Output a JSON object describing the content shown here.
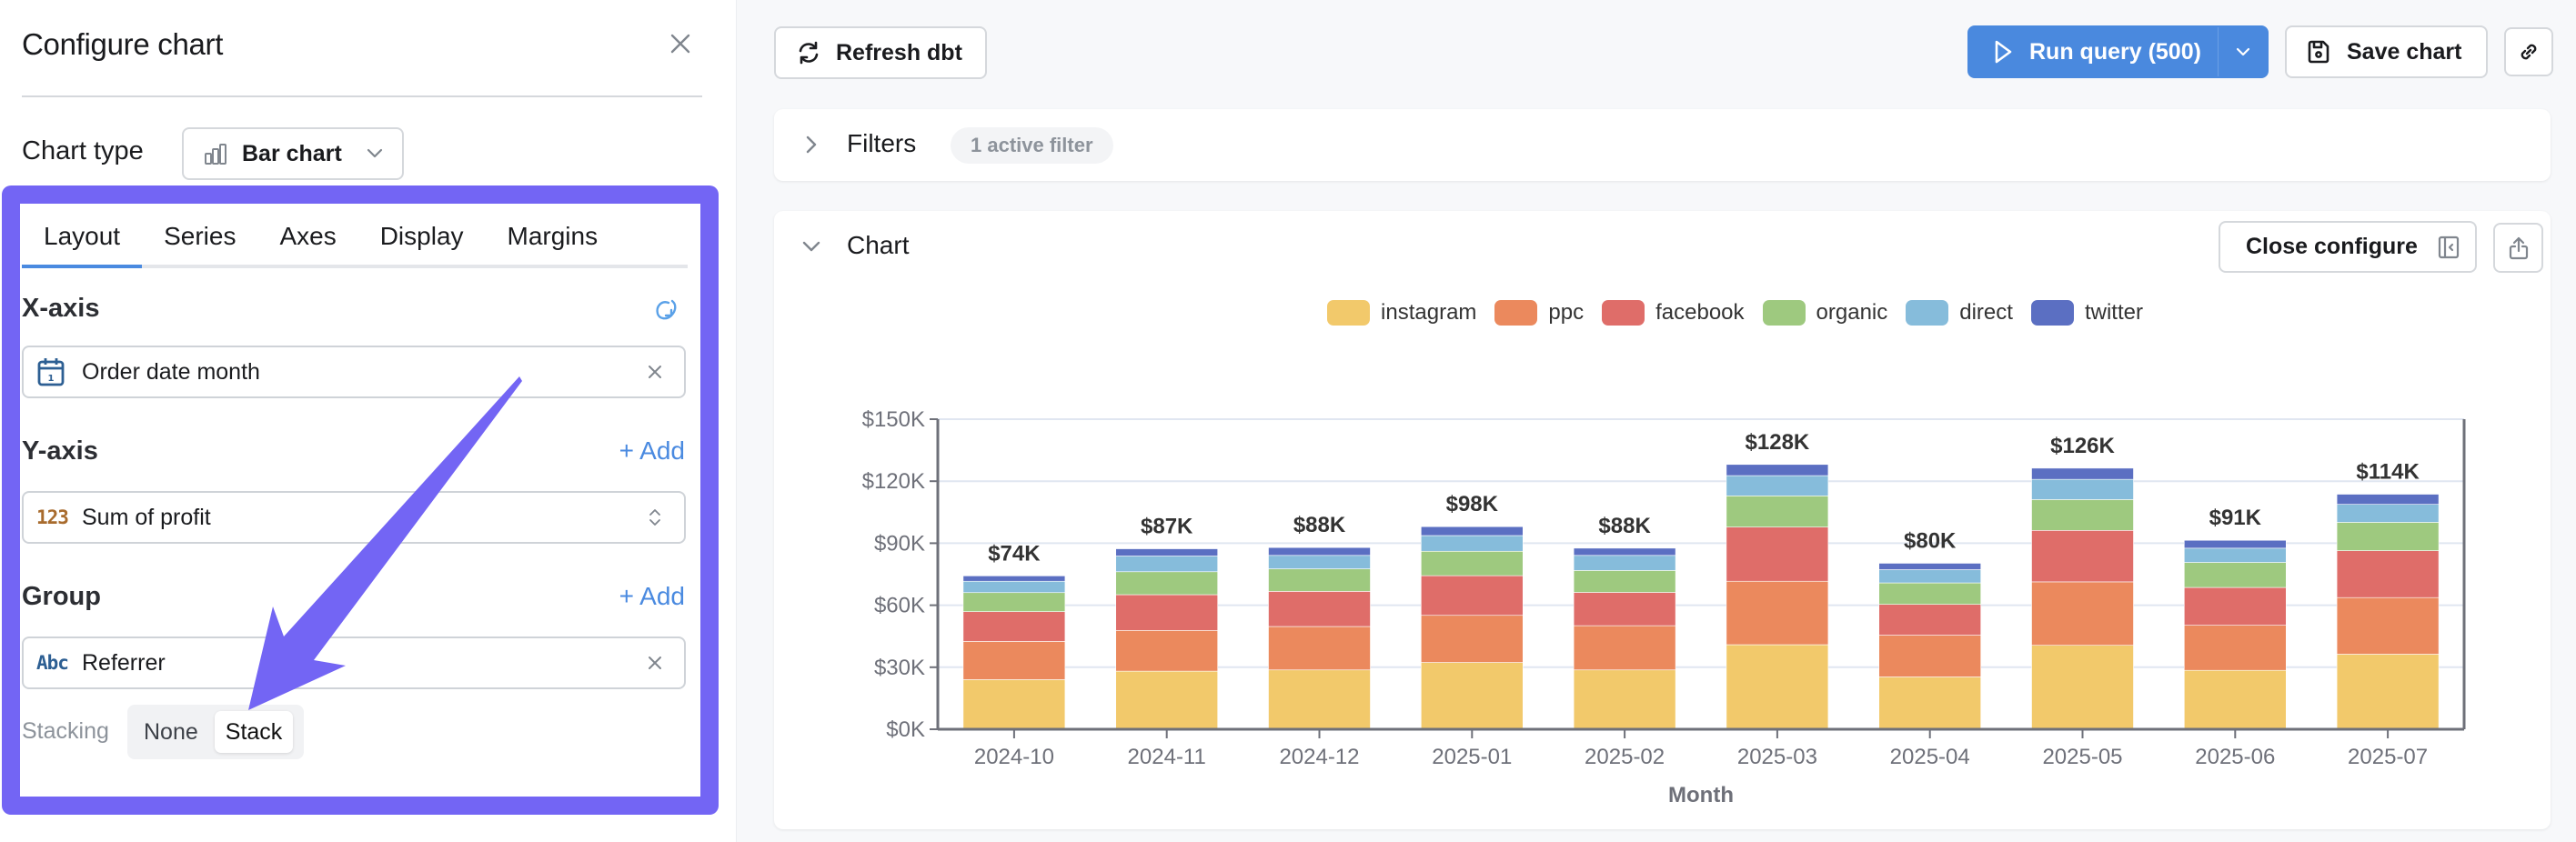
{
  "left_panel": {
    "title": "Configure chart",
    "close_icon": "close-icon",
    "chart_type_label": "Chart type",
    "chart_type_value": "Bar chart",
    "tabs": [
      {
        "label": "Layout",
        "active": true
      },
      {
        "label": "Series",
        "active": false
      },
      {
        "label": "Axes",
        "active": false
      },
      {
        "label": "Display",
        "active": false
      },
      {
        "label": "Margins",
        "active": false
      }
    ],
    "x_axis": {
      "label": "X-axis",
      "action_icon": "flip-axes-icon",
      "field": "Order date month",
      "field_type_icon": "calendar-icon"
    },
    "y_axis": {
      "label": "Y-axis",
      "action": "+ Add",
      "field": "Sum of profit",
      "field_type_glyph": "123"
    },
    "group": {
      "label": "Group",
      "action": "+ Add",
      "field": "Referrer",
      "field_type_glyph": "Abc"
    },
    "stacking": {
      "label": "Stacking",
      "options": [
        "None",
        "Stack"
      ],
      "selected": "Stack"
    }
  },
  "toolbar": {
    "refresh_label": "Refresh dbt",
    "run_label": "Run query (500)",
    "save_label": "Save chart"
  },
  "filters": {
    "title": "Filters",
    "badge": "1 active filter"
  },
  "chart_section": {
    "title": "Chart",
    "close_configure_label": "Close configure"
  },
  "colors": {
    "accent": "#4a89de",
    "highlight": "#7365f4"
  },
  "chart_data": {
    "type": "bar",
    "stacked": true,
    "title": "",
    "xlabel": "Month",
    "ylabel": "",
    "ylim": [
      0,
      150000
    ],
    "yticks": [
      0,
      30000,
      60000,
      90000,
      120000,
      150000
    ],
    "ytick_labels": [
      "$0K",
      "$30K",
      "$60K",
      "$90K",
      "$120K",
      "$150K"
    ],
    "grid": true,
    "legend_position": "top-center",
    "categories": [
      "2024-10",
      "2024-11",
      "2024-12",
      "2025-01",
      "2025-02",
      "2025-03",
      "2025-04",
      "2025-05",
      "2025-06",
      "2025-07"
    ],
    "totals_labels": [
      "$74K",
      "$87K",
      "$88K",
      "$98K",
      "$88K",
      "$128K",
      "$80K",
      "$126K",
      "$91K",
      "$114K"
    ],
    "series": [
      {
        "name": "instagram",
        "color": "#f2c96b",
        "values": [
          24000,
          28100,
          28700,
          32300,
          28700,
          40900,
          25300,
          40600,
          28500,
          36300
        ]
      },
      {
        "name": "ppc",
        "color": "#eb895d",
        "values": [
          18500,
          19700,
          21000,
          22800,
          21400,
          30700,
          20200,
          30700,
          21800,
          27400
        ]
      },
      {
        "name": "facebook",
        "color": "#df6d69",
        "values": [
          14400,
          17300,
          17000,
          19200,
          16100,
          26200,
          14900,
          24900,
          18300,
          22700
        ]
      },
      {
        "name": "organic",
        "color": "#9ec97f",
        "values": [
          9200,
          11100,
          10900,
          11800,
          10600,
          15100,
          10400,
          14900,
          12100,
          13700
        ]
      },
      {
        "name": "direct",
        "color": "#86bcdb",
        "values": [
          5500,
          7600,
          6500,
          7600,
          7300,
          9800,
          6400,
          9800,
          6900,
          8700
        ]
      },
      {
        "name": "twitter",
        "color": "#5b6fc2",
        "values": [
          2600,
          3500,
          3800,
          4300,
          3500,
          5400,
          3100,
          5400,
          3800,
          4900
        ]
      }
    ]
  }
}
